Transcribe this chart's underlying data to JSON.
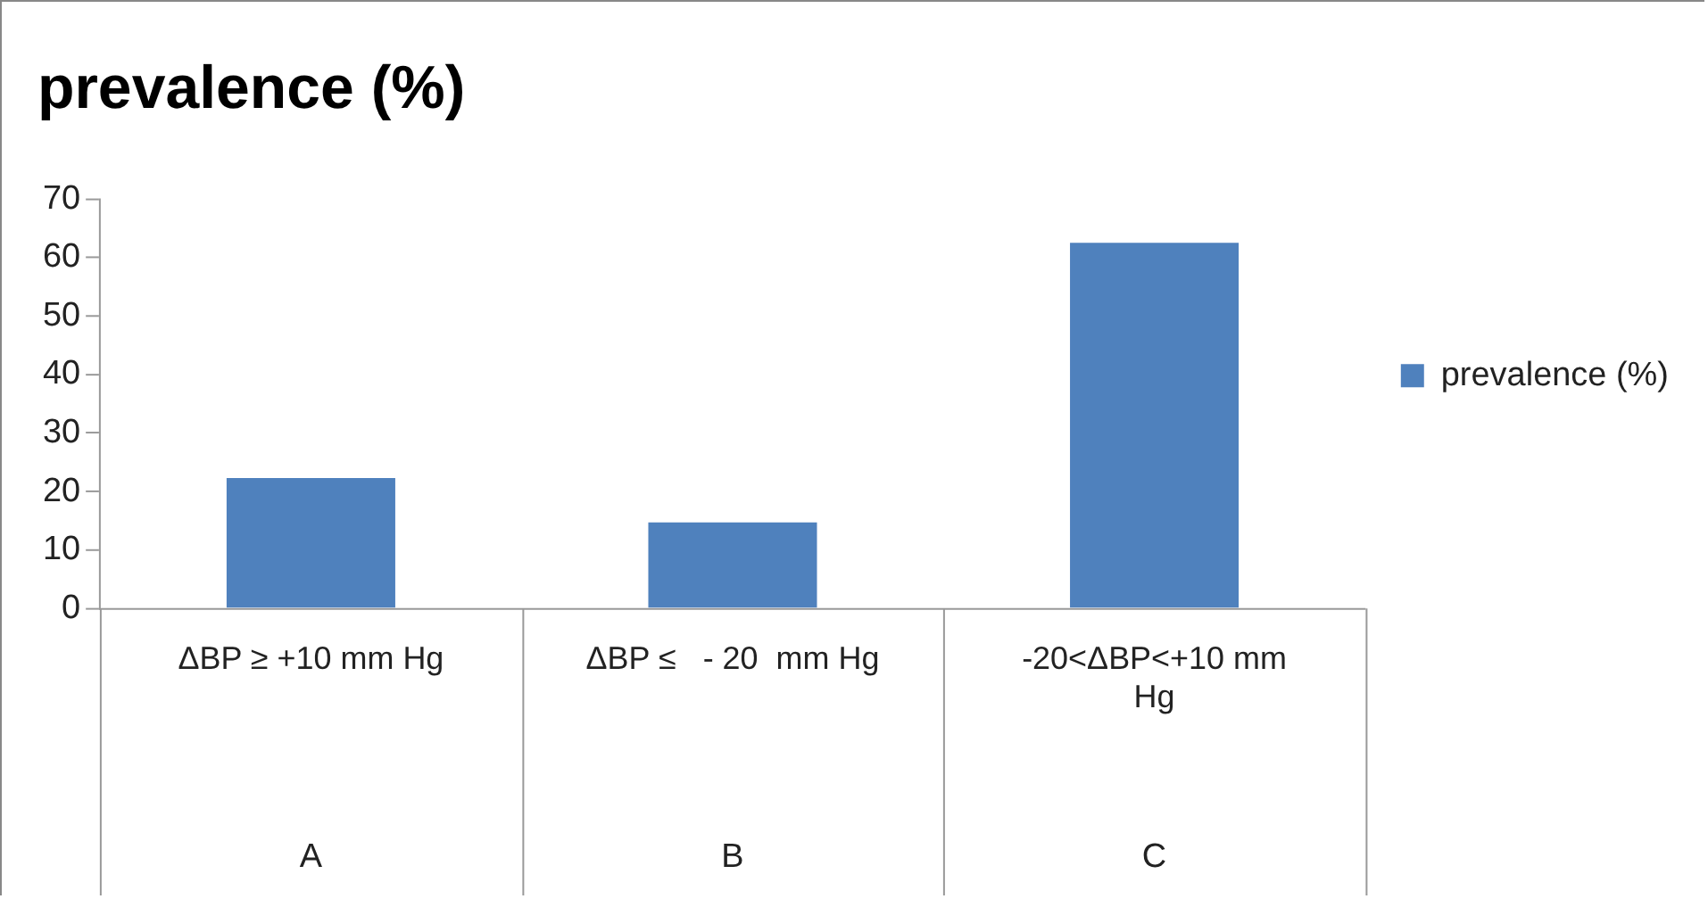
{
  "chart_data": {
    "type": "bar",
    "title": "prevalence (%)",
    "categories": [
      "ΔBP ≥ +10 mm Hg",
      "ΔBP ≤   - 20  mm Hg",
      "-20<ΔBP<+10 mm Hg"
    ],
    "series": [
      {
        "name": "prevalence (%)",
        "color": "#4f81bd",
        "values": [
          22.3,
          14.7,
          62.5
        ]
      }
    ],
    "annotations": [
      "A",
      "B",
      "C"
    ],
    "ylim": [
      0,
      70
    ],
    "yticks": [
      0,
      10,
      20,
      30,
      40,
      50,
      60,
      70
    ],
    "grid": false,
    "legend": "right"
  }
}
